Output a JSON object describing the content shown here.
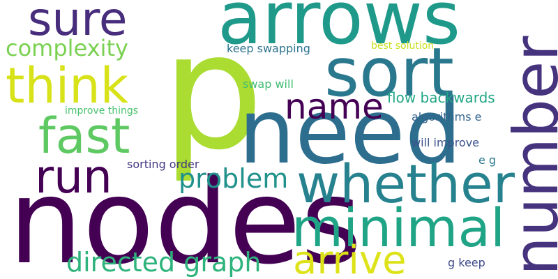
{
  "words": {
    "p": {
      "text": "p",
      "color": "#aadc32"
    },
    "nodes": {
      "text": "nodes",
      "color": "#440154"
    },
    "arrows": {
      "text": "arrows",
      "color": "#1f9a8a"
    },
    "sort": {
      "text": "sort",
      "color": "#2a788e"
    },
    "need": {
      "text": "need",
      "color": "#2d6e8e"
    },
    "number": {
      "text": "number",
      "color": "#46337e"
    },
    "whether": {
      "text": "whether",
      "color": "#26828e"
    },
    "minimal": {
      "text": "minimal",
      "color": "#20a486"
    },
    "sure": {
      "text": "sure",
      "color": "#472d7b"
    },
    "think": {
      "text": "think",
      "color": "#d8e219"
    },
    "fast": {
      "text": "fast",
      "color": "#5ec962"
    },
    "run": {
      "text": "run",
      "color": "#440154"
    },
    "arrive": {
      "text": "arrive",
      "color": "#dde318"
    },
    "name": {
      "text": "name",
      "color": "#440154"
    },
    "problem": {
      "text": "problem",
      "color": "#21918c"
    },
    "directed_graph": {
      "text": "directed graph",
      "color": "#2eb37c"
    },
    "complexity": {
      "text": "complexity",
      "color": "#7ad151"
    },
    "flow_backwards": {
      "text": "flow backwards",
      "color": "#21a685"
    },
    "keep_swapping": {
      "text": "keep swapping",
      "color": "#2c728e"
    },
    "swap_will": {
      "text": "swap will",
      "color": "#3fbc73"
    },
    "best_solution": {
      "text": "best solution",
      "color": "#c8e020"
    },
    "improve_things": {
      "text": "improve things",
      "color": "#4ac16d"
    },
    "sorting_order": {
      "text": "sorting order",
      "color": "#453781"
    },
    "algorithms_e": {
      "text": "algorithms e",
      "color": "#33638d"
    },
    "will_improve": {
      "text": "will improve",
      "color": "#3b528b"
    },
    "e_g": {
      "text": "e g",
      "color": "#2a788e"
    },
    "g_keep": {
      "text": "g keep",
      "color": "#3e4989"
    }
  }
}
